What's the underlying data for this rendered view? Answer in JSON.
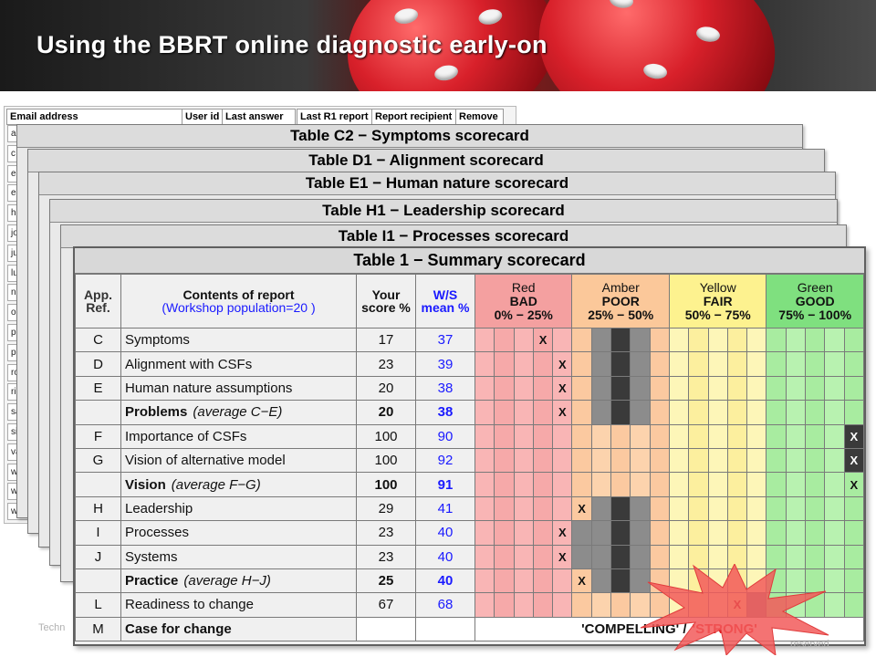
{
  "slide": {
    "title": "Using the BBRT online diagnostic early-on",
    "footer_left": "Techn",
    "footer_right": "reserved"
  },
  "email_table": {
    "headers": [
      "Email address",
      "User id",
      "Last answer",
      "Last R1 report",
      "Report recipient",
      "Remove"
    ],
    "rows_visible": [
      "a",
      "c",
      "e",
      "e",
      "h",
      "jo",
      "ju",
      "lu",
      "n",
      "o",
      "p",
      "p",
      "ro",
      "rica",
      "sam",
      "silvio.car",
      "valeria.ju",
      "wilmar.c",
      "wilson.ferre",
      "wilson.meirel"
    ]
  },
  "stacked_tables": [
    {
      "title": "Table C2 − Symptoms scorecard"
    },
    {
      "title": "Table D1 − Alignment scorecard"
    },
    {
      "title": "Table E1 − Human nature scorecard"
    },
    {
      "title": "Table H1 − Leadership scorecard"
    },
    {
      "title": "Table I1 − Processes scorecard"
    }
  ],
  "summary": {
    "title": "Table 1 − Summary scorecard",
    "headers": {
      "ref": "App. Ref.",
      "contents_line1": "Contents of report",
      "contents_line2": "(Workshop population=20 )",
      "your_score": "Your score %",
      "ws_mean": "W/S mean %"
    },
    "zones": [
      {
        "name": "Red",
        "label": "BAD",
        "range": "0% − 25%",
        "color": "#f4a0a0"
      },
      {
        "name": "Amber",
        "label": "POOR",
        "range": "25% − 50%",
        "color": "#fbc89a"
      },
      {
        "name": "Yellow",
        "label": "FAIR",
        "range": "50% − 75%",
        "color": "#fdf28f"
      },
      {
        "name": "Green",
        "label": "GOOD",
        "range": "75% − 100%",
        "color": "#7fe07f"
      }
    ],
    "rows": [
      {
        "ref": "C",
        "topic": "Symptoms",
        "avg": "",
        "score": "17",
        "mean": "37",
        "bold": false,
        "mark_col": 3,
        "mark": "X"
      },
      {
        "ref": "D",
        "topic": "Alignment with CSFs",
        "avg": "",
        "score": "23",
        "mean": "39",
        "bold": false,
        "mark_col": 4,
        "mark": "X"
      },
      {
        "ref": "E",
        "topic": "Human nature assumptions",
        "avg": "",
        "score": "20",
        "mean": "38",
        "bold": false,
        "mark_col": 4,
        "mark": "X"
      },
      {
        "ref": "",
        "topic": "Problems",
        "avg": "(average C−E)",
        "score": "20",
        "mean": "38",
        "bold": true,
        "mark_col": 4,
        "mark": "X"
      },
      {
        "ref": "F",
        "topic": "Importance of CSFs",
        "avg": "",
        "score": "100",
        "mean": "90",
        "bold": false,
        "mark_col": 19,
        "mark": "X"
      },
      {
        "ref": "G",
        "topic": "Vision of alternative model",
        "avg": "",
        "score": "100",
        "mean": "92",
        "bold": false,
        "mark_col": 19,
        "mark": "X"
      },
      {
        "ref": "",
        "topic": "Vision",
        "avg": "(average F−G)",
        "score": "100",
        "mean": "91",
        "bold": true,
        "mark_col": 19,
        "mark": "X"
      },
      {
        "ref": "H",
        "topic": "Leadership",
        "avg": "",
        "score": "29",
        "mean": "41",
        "bold": false,
        "mark_col": 5,
        "mark": "X"
      },
      {
        "ref": "I",
        "topic": "Processes",
        "avg": "",
        "score": "23",
        "mean": "40",
        "bold": false,
        "mark_col": 4,
        "mark": "X"
      },
      {
        "ref": "J",
        "topic": "Systems",
        "avg": "",
        "score": "23",
        "mean": "40",
        "bold": false,
        "mark_col": 4,
        "mark": "X"
      },
      {
        "ref": "",
        "topic": "Practice",
        "avg": "(average H−J)",
        "score": "25",
        "mean": "40",
        "bold": true,
        "mark_col": 5,
        "mark": "X"
      },
      {
        "ref": "L",
        "topic": "Readiness to change",
        "avg": "",
        "score": "67",
        "mean": "68",
        "bold": false,
        "mark_col": 13,
        "mark": "X"
      }
    ],
    "case_row": {
      "ref": "M",
      "topic": "Case for change",
      "verdict_a": "'COMPELLING' /",
      "verdict_b": "'STRONG'"
    }
  }
}
